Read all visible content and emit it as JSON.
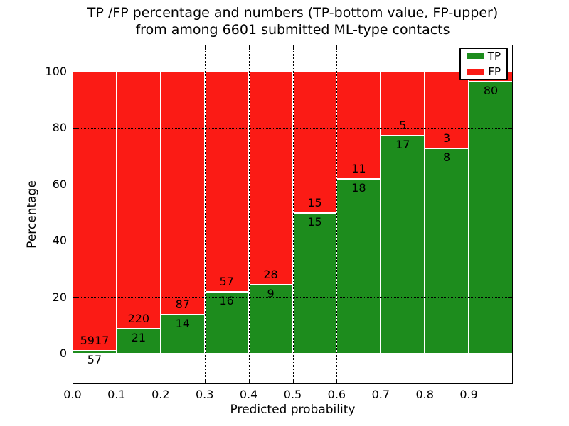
{
  "figure": {
    "title_line1": "TP /FP percentage and numbers (TP-bottom value, FP-upper)",
    "title_line2": "from among 6601 submitted ML-type contacts",
    "xlabel": "Predicted probability",
    "ylabel": "Percentage"
  },
  "legend": {
    "position": "upper-right",
    "items": [
      {
        "label": "TP",
        "color": "#1d8c1d"
      },
      {
        "label": "FP",
        "color": "#fb1b15"
      }
    ]
  },
  "chart_data": {
    "type": "bar",
    "stacked": true,
    "title": "TP /FP percentage and numbers (TP-bottom value, FP-upper) from among 6601 submitted ML-type contacts",
    "xlabel": "Predicted probability",
    "ylabel": "Percentage",
    "total_submitted_contacts": 6601,
    "grid": true,
    "grid_style": "dotted",
    "x_ticks": [
      "0.0",
      "0.1",
      "0.2",
      "0.3",
      "0.4",
      "0.5",
      "0.6",
      "0.7",
      "0.8",
      "0.9"
    ],
    "y_ticks": [
      "0",
      "20",
      "40",
      "60",
      "80",
      "100"
    ],
    "xlim": [
      0.0,
      1.0
    ],
    "data_ylim": [
      0,
      100
    ],
    "bin_width": 0.1,
    "series_colors": {
      "tp": "#1d8c1d",
      "fp": "#fb1b15"
    },
    "label_note": "TP count printed below TP/FP boundary, FP count printed above it",
    "bars": [
      {
        "bin": "0.0-0.1",
        "tp_count": "57",
        "fp_count": "5917",
        "tp_pct": 0.95
      },
      {
        "bin": "0.1-0.2",
        "tp_count": "21",
        "fp_count": "220",
        "tp_pct": 8.71
      },
      {
        "bin": "0.2-0.3",
        "tp_count": "14",
        "fp_count": "87",
        "tp_pct": 13.86
      },
      {
        "bin": "0.3-0.4",
        "tp_count": "16",
        "fp_count": "57",
        "tp_pct": 21.92
      },
      {
        "bin": "0.4-0.5",
        "tp_count": "9",
        "fp_count": "28",
        "tp_pct": 24.32
      },
      {
        "bin": "0.5-0.6",
        "tp_count": "15",
        "fp_count": "15",
        "tp_pct": 50.0
      },
      {
        "bin": "0.6-0.7",
        "tp_count": "18",
        "fp_count": "11",
        "tp_pct": 62.07
      },
      {
        "bin": "0.7-0.8",
        "tp_count": "17",
        "fp_count": "5",
        "tp_pct": 77.27
      },
      {
        "bin": "0.8-0.9",
        "tp_count": "8",
        "fp_count": "3",
        "tp_pct": 72.73
      },
      {
        "bin": "0.9-1.0",
        "tp_count": "80",
        "fp_count": "",
        "tp_pct": 96.39
      }
    ]
  }
}
